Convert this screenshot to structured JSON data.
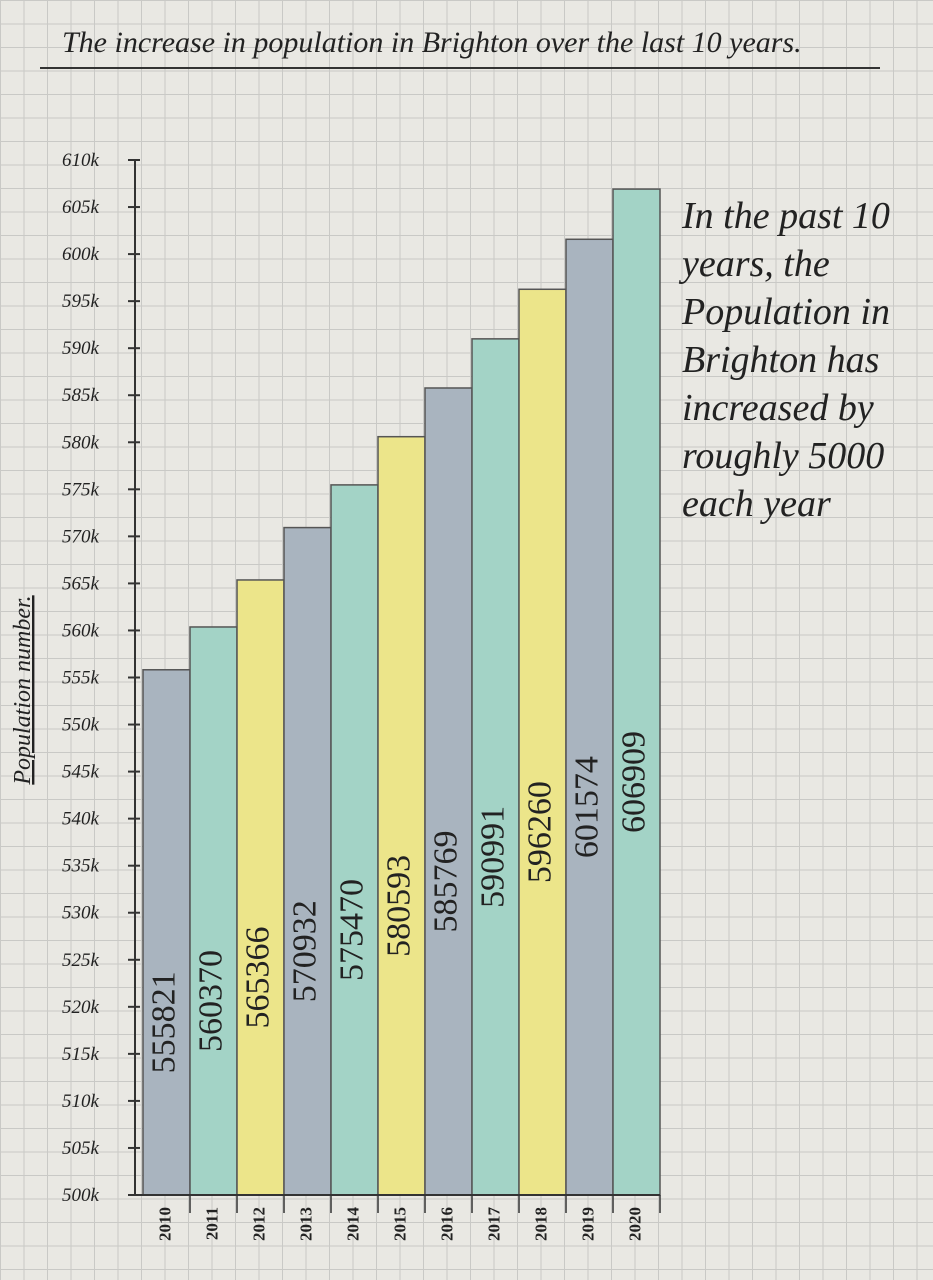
{
  "chart_data": {
    "type": "bar",
    "title": "The increase in population in Brighton over the last 10 years.",
    "y_label": "Population number.",
    "annotation": "In the past 10 years, the Population in Brighton has increased by roughly 5000 each year",
    "categories": [
      "2010",
      "2011",
      "2012",
      "2013",
      "2014",
      "2015",
      "2016",
      "2017",
      "2018",
      "2019",
      "2020"
    ],
    "values": [
      555821,
      560370,
      565366,
      570932,
      575470,
      580593,
      585769,
      590991,
      596260,
      601574,
      606909
    ],
    "colors": [
      "#a9b4bf",
      "#a3d3c6",
      "#ece58a",
      "#a9b4bf",
      "#a3d3c6",
      "#ece58a",
      "#a9b4bf",
      "#a3d3c6",
      "#ece58a",
      "#a9b4bf",
      "#a3d3c6"
    ],
    "ylim": [
      500000,
      610000
    ],
    "yticks": [
      {
        "value": 500000,
        "label": "500k"
      },
      {
        "value": 505000,
        "label": "505k"
      },
      {
        "value": 510000,
        "label": "510k"
      },
      {
        "value": 515000,
        "label": "515k"
      },
      {
        "value": 520000,
        "label": "520k"
      },
      {
        "value": 525000,
        "label": "525k"
      },
      {
        "value": 530000,
        "label": "530k"
      },
      {
        "value": 535000,
        "label": "535k"
      },
      {
        "value": 540000,
        "label": "540k"
      },
      {
        "value": 545000,
        "label": "545k"
      },
      {
        "value": 550000,
        "label": "550k"
      },
      {
        "value": 555000,
        "label": "555k"
      },
      {
        "value": 560000,
        "label": "560k"
      },
      {
        "value": 565000,
        "label": "565k"
      },
      {
        "value": 570000,
        "label": "570k"
      },
      {
        "value": 575000,
        "label": "575k"
      },
      {
        "value": 580000,
        "label": "580k"
      },
      {
        "value": 585000,
        "label": "585k"
      },
      {
        "value": 590000,
        "label": "590k"
      },
      {
        "value": 595000,
        "label": "595k"
      },
      {
        "value": 600000,
        "label": "600k"
      },
      {
        "value": 605000,
        "label": "605k"
      },
      {
        "value": 610000,
        "label": "610k"
      }
    ]
  }
}
